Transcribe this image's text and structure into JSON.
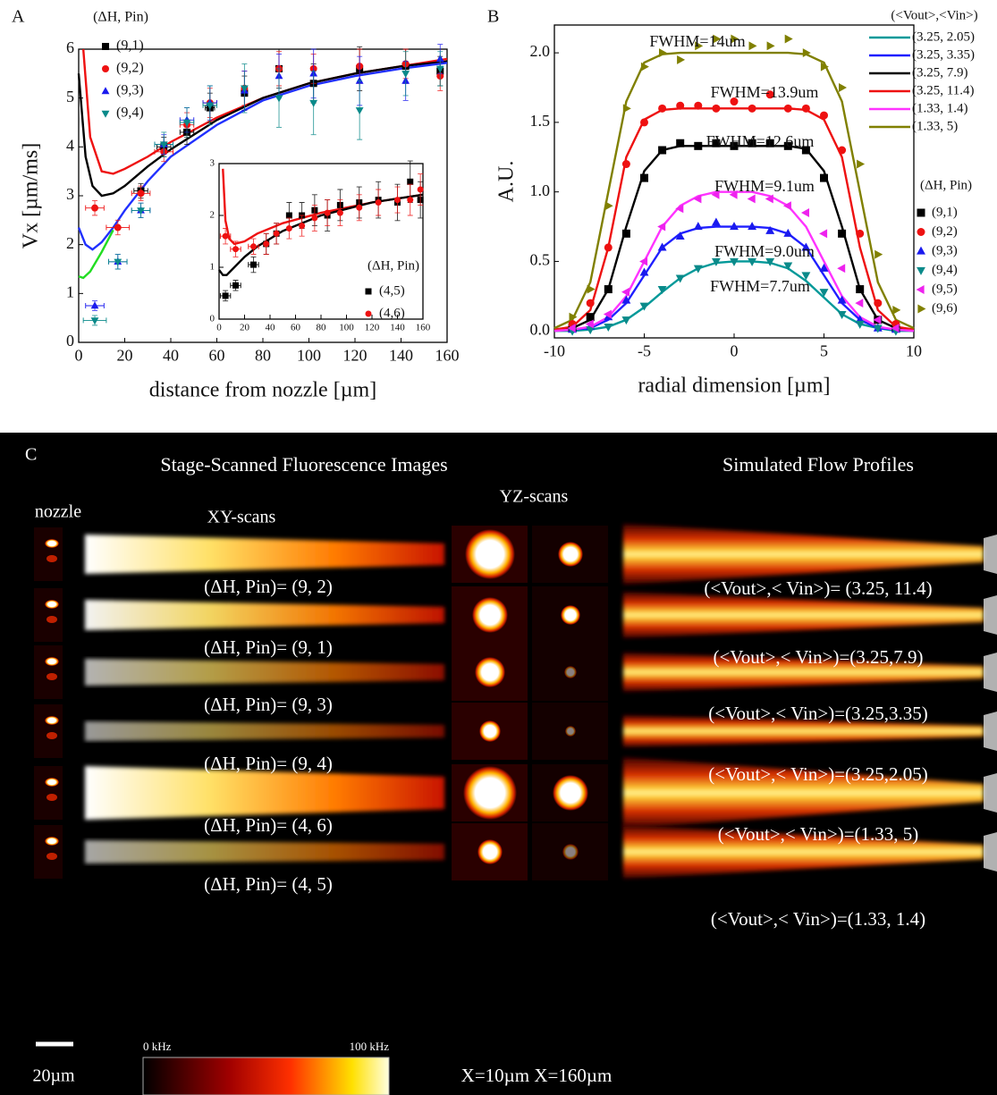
{
  "chart_data": [
    {
      "type": "scatter",
      "panel_label": "A",
      "xlabel": "distance from nozzle [µm]",
      "ylabel": "Vx [µm/ms]",
      "legend_title": "(ΔH, Pin)",
      "xlim": [
        0,
        160
      ],
      "ylim": [
        0,
        6
      ],
      "xticks": [
        0,
        20,
        40,
        60,
        80,
        100,
        120,
        140,
        160
      ],
      "yticks": [
        0,
        1,
        2,
        3,
        4,
        5,
        6
      ],
      "x": [
        7,
        17,
        27,
        37,
        47,
        57,
        72,
        87,
        102,
        122,
        142,
        157
      ],
      "series": [
        {
          "name": "(9,1)",
          "color": "#000000",
          "marker": "square",
          "values": [
            null,
            null,
            3.1,
            4.0,
            4.3,
            4.8,
            5.1,
            5.6,
            5.3,
            5.6,
            5.65,
            5.55
          ],
          "yerr": [
            0.1,
            0.1,
            0.15,
            0.2,
            0.25,
            0.3,
            0.35,
            0.4,
            0.4,
            0.45,
            0.35,
            0.3
          ],
          "xerr": [
            4,
            4,
            3,
            3,
            3,
            2,
            0,
            0,
            0,
            0,
            0,
            0
          ]
        },
        {
          "name": "(9,2)",
          "color": "#ee1111",
          "marker": "circle",
          "values": [
            2.75,
            2.35,
            3.05,
            3.9,
            4.45,
            4.9,
            5.2,
            5.6,
            5.6,
            5.65,
            5.7,
            5.45
          ],
          "yerr": [
            0.15,
            0.15,
            0.15,
            0.2,
            0.25,
            0.3,
            0.35,
            0.35,
            0.3,
            0.35,
            0.3,
            0.3
          ],
          "xerr": [
            4,
            5,
            4,
            4,
            3,
            3,
            0,
            0,
            0,
            0,
            0,
            0
          ]
        },
        {
          "name": "(9,3)",
          "color": "#1a1aee",
          "marker": "triangle-up",
          "values": [
            0.75,
            1.65,
            2.7,
            4.05,
            4.55,
            4.9,
            5.15,
            5.45,
            5.5,
            5.35,
            5.35,
            5.8
          ],
          "yerr": [
            0.1,
            0.15,
            0.15,
            0.2,
            0.25,
            0.35,
            0.4,
            0.45,
            0.5,
            0.5,
            0.4,
            0.3
          ],
          "xerr": [
            4,
            4,
            4,
            4,
            3,
            3,
            0,
            0,
            0,
            0,
            0,
            0
          ]
        },
        {
          "name": "(9,4)",
          "color": "#0a8a8a",
          "marker": "triangle-down",
          "values": [
            0.45,
            1.65,
            2.7,
            4.05,
            4.5,
            4.85,
            5.2,
            5.0,
            4.9,
            4.75,
            5.5,
            5.6
          ],
          "yerr": [
            0.1,
            0.15,
            0.15,
            0.25,
            0.3,
            0.4,
            0.5,
            0.6,
            0.65,
            0.6,
            0.45,
            0.35
          ],
          "xerr": [
            5,
            4,
            4,
            4,
            3,
            3,
            0,
            0,
            0,
            0,
            0,
            0
          ]
        }
      ],
      "fits": [
        {
          "color": "#ee1111",
          "x": [
            2,
            5,
            10,
            15,
            20,
            30,
            40,
            60,
            80,
            100,
            120,
            140,
            160
          ],
          "values": [
            6,
            4.2,
            3.5,
            3.45,
            3.55,
            3.8,
            4.1,
            4.6,
            5.0,
            5.3,
            5.5,
            5.65,
            5.8
          ]
        },
        {
          "color": "#000000",
          "x": [
            0,
            3,
            6,
            10,
            15,
            20,
            30,
            40,
            60,
            80,
            100,
            120,
            140,
            160
          ],
          "values": [
            5.5,
            3.8,
            3.2,
            3.0,
            3.05,
            3.2,
            3.6,
            3.95,
            4.55,
            5.0,
            5.3,
            5.5,
            5.65,
            5.75
          ]
        },
        {
          "color": "#2030ff",
          "x": [
            0,
            3,
            6,
            10,
            15,
            20,
            30,
            40,
            60,
            80,
            100,
            120,
            140,
            160
          ],
          "values": [
            2.35,
            2.0,
            1.9,
            2.05,
            2.35,
            2.7,
            3.3,
            3.8,
            4.45,
            4.95,
            5.25,
            5.45,
            5.6,
            5.72
          ]
        },
        {
          "color": "#22dd22",
          "x": [
            0,
            2,
            5,
            10,
            15
          ],
          "values": [
            1.35,
            1.32,
            1.45,
            1.85,
            2.3
          ]
        }
      ]
    },
    {
      "type": "scatter",
      "legend_title": "(ΔH, Pin)",
      "xlim": [
        0,
        160
      ],
      "ylim": [
        0,
        3
      ],
      "xticks": [
        0,
        20,
        40,
        60,
        80,
        100,
        120,
        140,
        160
      ],
      "yticks": [
        0,
        1,
        2,
        3
      ],
      "x": [
        5,
        13,
        27,
        37,
        45,
        55,
        65,
        75,
        85,
        95,
        110,
        125,
        140,
        150,
        158
      ],
      "series": [
        {
          "name": "(4,5)",
          "color": "#000000",
          "marker": "square",
          "values": [
            0.45,
            0.65,
            1.05,
            1.45,
            1.65,
            2.0,
            2.0,
            2.1,
            2.0,
            2.2,
            2.25,
            2.3,
            2.25,
            2.65,
            2.3
          ],
          "yerr": [
            0.1,
            0.1,
            0.15,
            0.2,
            0.2,
            0.25,
            0.25,
            0.3,
            0.3,
            0.3,
            0.3,
            0.35,
            0.35,
            0.4,
            0.35
          ],
          "xerr": [
            4,
            4,
            4,
            0,
            0,
            0,
            0,
            0,
            0,
            0,
            0,
            0,
            0,
            0,
            0
          ]
        },
        {
          "name": "(4,6)",
          "color": "#ee1111",
          "marker": "circle",
          "values": [
            1.6,
            1.35,
            1.4,
            1.45,
            1.65,
            1.75,
            1.8,
            1.95,
            2.05,
            2.05,
            2.15,
            2.25,
            2.3,
            2.3,
            2.5
          ],
          "yerr": [
            0.15,
            0.15,
            0.15,
            0.2,
            0.2,
            0.2,
            0.2,
            0.25,
            0.25,
            0.25,
            0.25,
            0.25,
            0.25,
            0.3,
            0.3
          ],
          "xerr": [
            4,
            4,
            4,
            0,
            0,
            0,
            0,
            0,
            0,
            0,
            0,
            0,
            0,
            0,
            0
          ]
        }
      ],
      "fits": [
        {
          "color": "#ee1111",
          "x": [
            3,
            5,
            8,
            12,
            20,
            30,
            50,
            80,
            120,
            160
          ],
          "values": [
            2.9,
            1.9,
            1.55,
            1.45,
            1.5,
            1.65,
            1.85,
            2.05,
            2.25,
            2.4
          ]
        },
        {
          "color": "#000000",
          "x": [
            0,
            3,
            6,
            10,
            20,
            30,
            50,
            80,
            120,
            160
          ],
          "values": [
            0.95,
            0.85,
            0.85,
            0.95,
            1.2,
            1.4,
            1.7,
            2.0,
            2.25,
            2.4
          ]
        }
      ]
    },
    {
      "type": "scatter",
      "panel_label": "B",
      "xlabel": "radial dimension [µm]",
      "ylabel": "A.U.",
      "legend_title": "(ΔH, Pin)",
      "fit_legend_title": "(<Vout>,<Vin>)",
      "xlim": [
        -10,
        10
      ],
      "ylim": [
        -0.05,
        2.2
      ],
      "xticks": [
        -10,
        -5,
        0,
        5,
        10
      ],
      "yticks": [
        {
          "value": 0,
          "label": "0.0"
        },
        0.5,
        {
          "value": 1,
          "label": "1.0"
        },
        1.5,
        {
          "value": 2,
          "label": "2.0"
        }
      ],
      "x": [
        -9,
        -8,
        -7,
        -6,
        -5,
        -4,
        -3,
        -2,
        -1,
        0,
        1,
        2,
        3,
        4,
        5,
        6,
        7,
        8,
        9
      ],
      "series": [
        {
          "name": "(9,1)",
          "color": "#000000",
          "marker": "square",
          "values": [
            0.02,
            0.1,
            0.3,
            0.7,
            1.1,
            1.3,
            1.35,
            1.33,
            1.35,
            1.33,
            1.35,
            1.35,
            1.33,
            1.3,
            1.1,
            0.7,
            0.3,
            0.08,
            0.02
          ]
        },
        {
          "name": "(9,2)",
          "color": "#ee1111",
          "marker": "circle",
          "values": [
            0.05,
            0.2,
            0.6,
            1.2,
            1.5,
            1.6,
            1.62,
            1.62,
            1.6,
            1.65,
            1.6,
            1.7,
            1.6,
            1.6,
            1.55,
            1.3,
            0.7,
            0.2,
            0.05
          ]
        },
        {
          "name": "(9,3)",
          "color": "#1a1aee",
          "marker": "triangle-up",
          "values": [
            0.01,
            0.03,
            0.1,
            0.22,
            0.42,
            0.6,
            0.68,
            0.75,
            0.78,
            0.75,
            0.75,
            0.72,
            0.7,
            0.6,
            0.45,
            0.22,
            0.08,
            0.02,
            0.01
          ]
        },
        {
          "name": "(9,4)",
          "color": "#0a8a8a",
          "marker": "triangle-down",
          "values": [
            0,
            0.01,
            0.03,
            0.08,
            0.18,
            0.3,
            0.38,
            0.45,
            0.5,
            0.5,
            0.5,
            0.5,
            0.47,
            0.4,
            0.28,
            0.12,
            0.05,
            0.02,
            0
          ]
        },
        {
          "name": "(9,5)",
          "color": "#ee22ee",
          "marker": "triangle-left",
          "values": [
            0.02,
            0.05,
            0.12,
            0.28,
            0.5,
            0.75,
            0.88,
            0.95,
            0.98,
            0.98,
            0.95,
            0.95,
            0.9,
            0.85,
            0.7,
            0.45,
            0.2,
            0.08,
            0.02
          ]
        },
        {
          "name": "(9,6)",
          "color": "#808000",
          "marker": "triangle-right",
          "values": [
            0.1,
            0.3,
            0.9,
            1.6,
            1.9,
            2.0,
            1.95,
            2.05,
            2.1,
            2.1,
            2.05,
            2.05,
            2.1,
            2.0,
            1.9,
            1.75,
            1.2,
            0.55,
            0.15
          ]
        }
      ],
      "fits": [
        {
          "name": "(3.25, 2.05)",
          "color": "#009999",
          "x": [
            -10,
            -9,
            -8,
            -7,
            -6,
            -5,
            -4,
            -3,
            -2,
            -1,
            0,
            1,
            2,
            3,
            4,
            5,
            6,
            7,
            8,
            9,
            10
          ],
          "values": [
            0,
            0,
            0.01,
            0.03,
            0.08,
            0.17,
            0.28,
            0.38,
            0.45,
            0.49,
            0.5,
            0.5,
            0.49,
            0.45,
            0.36,
            0.24,
            0.12,
            0.05,
            0.02,
            0,
            0
          ]
        },
        {
          "name": "(3.25, 3.35)",
          "color": "#1f1fff",
          "x": [
            -10,
            -9,
            -8,
            -7,
            -6,
            -5,
            -4,
            -3,
            -2,
            -1,
            0,
            1,
            2,
            3,
            4,
            5,
            6,
            7,
            8,
            9,
            10
          ],
          "values": [
            0,
            0.01,
            0.02,
            0.08,
            0.2,
            0.4,
            0.6,
            0.7,
            0.74,
            0.75,
            0.75,
            0.75,
            0.74,
            0.7,
            0.6,
            0.4,
            0.2,
            0.08,
            0.02,
            0.01,
            0
          ]
        },
        {
          "name": "(3.25, 7.9)",
          "color": "#000000",
          "x": [
            -10,
            -9,
            -8,
            -7,
            -6,
            -5,
            -4,
            -3,
            -2,
            -1,
            0,
            1,
            2,
            3,
            4,
            5,
            6,
            7,
            8,
            9,
            10
          ],
          "values": [
            0,
            0.02,
            0.08,
            0.3,
            0.75,
            1.15,
            1.3,
            1.33,
            1.33,
            1.33,
            1.33,
            1.33,
            1.33,
            1.33,
            1.31,
            1.15,
            0.75,
            0.3,
            0.08,
            0.02,
            0
          ]
        },
        {
          "name": "(3.25, 11.4)",
          "color": "#ee1111",
          "x": [
            -10,
            -9,
            -8,
            -7,
            -6,
            -5,
            -4,
            -3,
            -2,
            -1,
            0,
            1,
            2,
            3,
            4,
            5,
            6,
            7,
            8,
            9,
            10
          ],
          "values": [
            0.01,
            0.03,
            0.15,
            0.6,
            1.25,
            1.52,
            1.59,
            1.6,
            1.6,
            1.6,
            1.6,
            1.6,
            1.6,
            1.6,
            1.59,
            1.52,
            1.25,
            0.6,
            0.15,
            0.03,
            0.01
          ]
        },
        {
          "name": "(1.33, 1.4)",
          "color": "#ff33ff",
          "x": [
            -10,
            -9,
            -8,
            -7,
            -6,
            -5,
            -4,
            -3,
            -2,
            -1,
            0,
            1,
            2,
            3,
            4,
            5,
            6,
            7,
            8,
            9,
            10
          ],
          "values": [
            0,
            0.01,
            0.03,
            0.1,
            0.25,
            0.5,
            0.75,
            0.9,
            0.97,
            1.0,
            1.0,
            1.0,
            0.97,
            0.9,
            0.75,
            0.5,
            0.25,
            0.1,
            0.03,
            0.01,
            0
          ]
        },
        {
          "name": "(1.33, 5)",
          "color": "#808000",
          "x": [
            -10,
            -9,
            -8,
            -7,
            -6,
            -5,
            -4,
            -3,
            -2,
            -1,
            0,
            1,
            2,
            3,
            4,
            5,
            6,
            7,
            8,
            9,
            10
          ],
          "values": [
            0.02,
            0.08,
            0.35,
            1.0,
            1.65,
            1.93,
            1.99,
            2.0,
            2.0,
            2.0,
            2.0,
            2.0,
            2.0,
            2.0,
            1.99,
            1.93,
            1.65,
            1.0,
            0.35,
            0.08,
            0.02
          ]
        }
      ],
      "annotations": [
        "FWHM=14um",
        "FWHM=13.9um",
        "FWHM=12.6um",
        "FWHM=9.1um",
        "FWHM=9.0um",
        "FWHM=7.7um"
      ]
    }
  ],
  "panel_c": {
    "label": "C",
    "title_left": "Stage-Scanned Fluorescence Images",
    "title_right": "Simulated Flow Profiles",
    "nozzle_label": "nozzle",
    "xy_label": "XY-scans",
    "yz_label": "YZ-scans",
    "rows": [
      {
        "xy": "(ΔH, Pin)= (9, 2)",
        "sim": "(<Vout>,< Vin>)= (3.25, 11.4)"
      },
      {
        "xy": "(ΔH, Pin)= (9, 1)",
        "sim": "(<Vout>,< Vin>)=(3.25,7.9)"
      },
      {
        "xy": "(ΔH, Pin)= (9, 3)",
        "sim": "(<Vout>,< Vin>)=(3.25,3.35)"
      },
      {
        "xy": "(ΔH, Pin)= (9, 4)",
        "sim": "(<Vout>,< Vin>)=(3.25,2.05)"
      },
      {
        "xy": "(ΔH, Pin)= (4, 6)",
        "sim": "(<Vout>,< Vin>)=(1.33, 5)"
      },
      {
        "xy": "(ΔH, Pin)= (4, 5)",
        "sim": "(<Vout>,< Vin>)=(1.33, 1.4)"
      }
    ],
    "colorbar_min": "0 kHz",
    "colorbar_max": "100 kHz",
    "scale_bar": "20µm",
    "yz_positions": "X=10µm X=160µm"
  }
}
